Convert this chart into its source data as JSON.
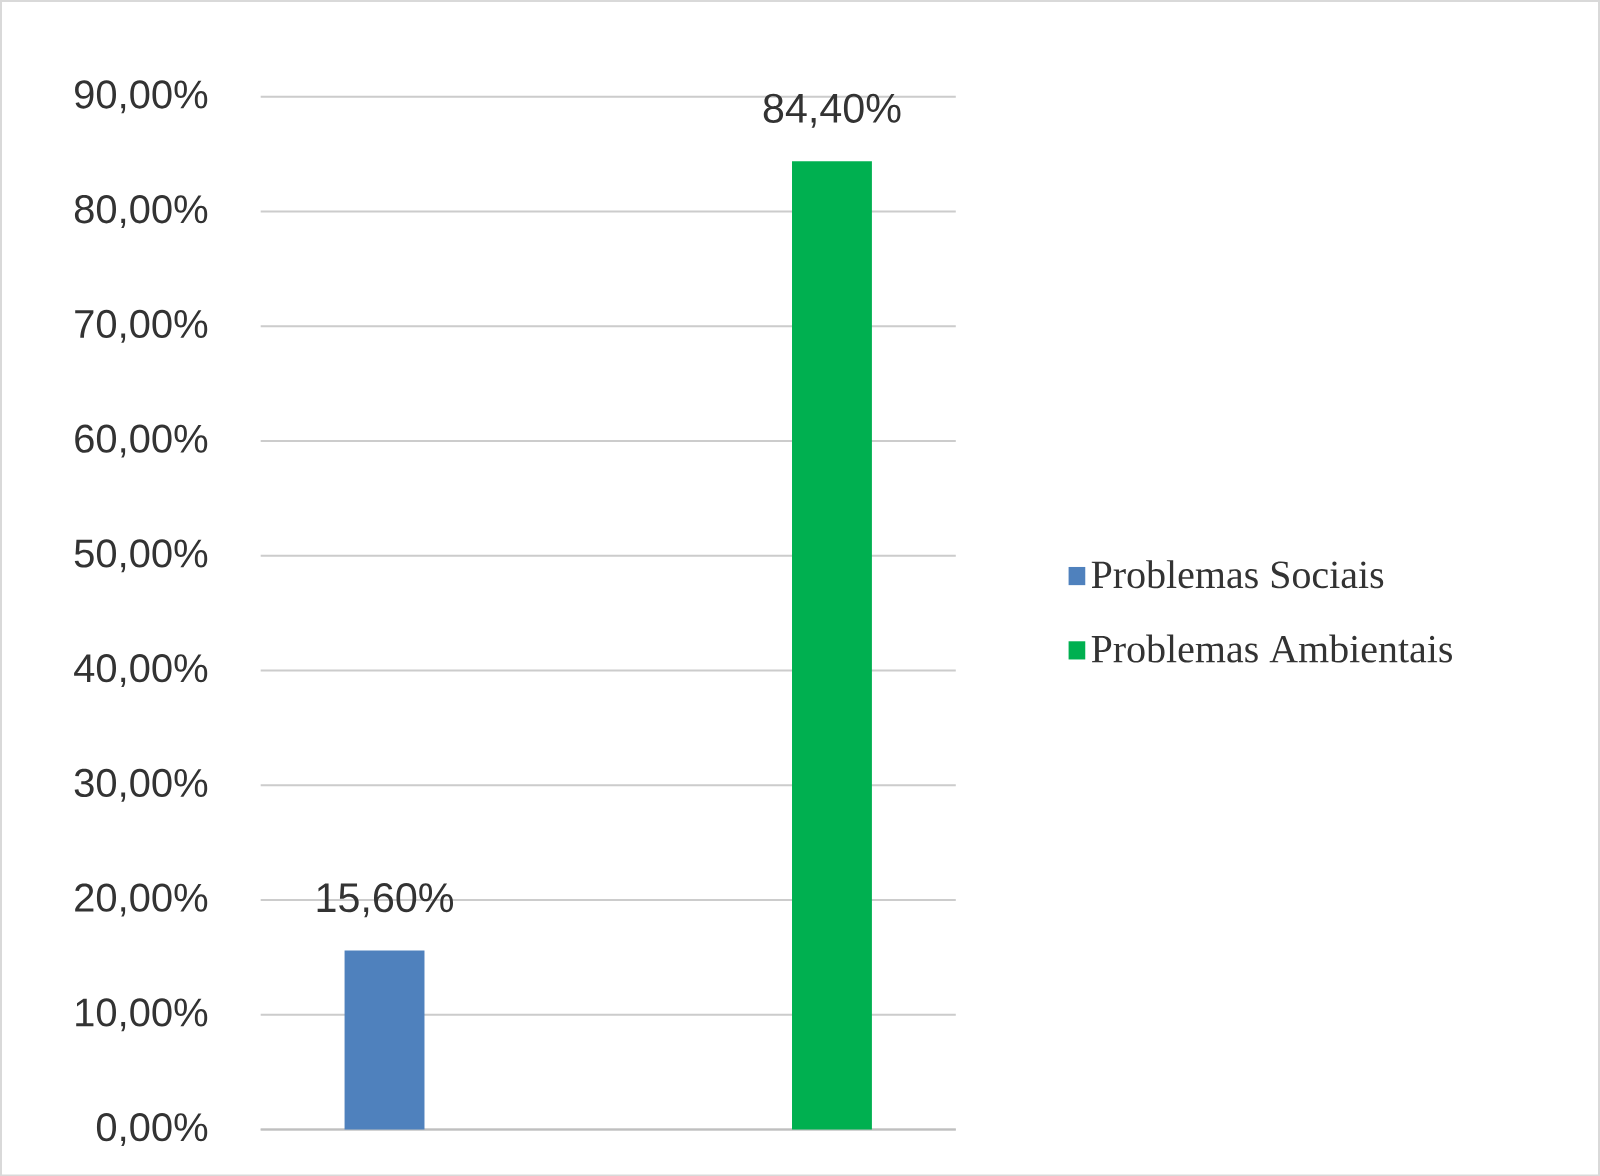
{
  "chart_data": {
    "type": "bar",
    "categories": [
      null,
      null
    ],
    "series": [
      {
        "name": "Problemas Sociais",
        "color": "#4f81bd",
        "values": [
          15.6,
          null
        ],
        "value_labels": [
          "15,60%",
          null
        ]
      },
      {
        "name": "Problemas Ambientais",
        "color": "#00b050",
        "values": [
          null,
          84.4
        ],
        "value_labels": [
          null,
          "84,40%"
        ]
      }
    ],
    "ylim": [
      0,
      90
    ],
    "yticks": [
      {
        "value": 0,
        "label": "0,00%"
      },
      {
        "value": 10,
        "label": "10,00%"
      },
      {
        "value": 20,
        "label": "20,00%"
      },
      {
        "value": 30,
        "label": "30,00%"
      },
      {
        "value": 40,
        "label": "40,00%"
      },
      {
        "value": 50,
        "label": "50,00%"
      },
      {
        "value": 60,
        "label": "60,00%"
      },
      {
        "value": 70,
        "label": "70,00%"
      },
      {
        "value": 80,
        "label": "80,00%"
      },
      {
        "value": 90,
        "label": "90,00%"
      }
    ],
    "grid": true,
    "legend": "right"
  }
}
